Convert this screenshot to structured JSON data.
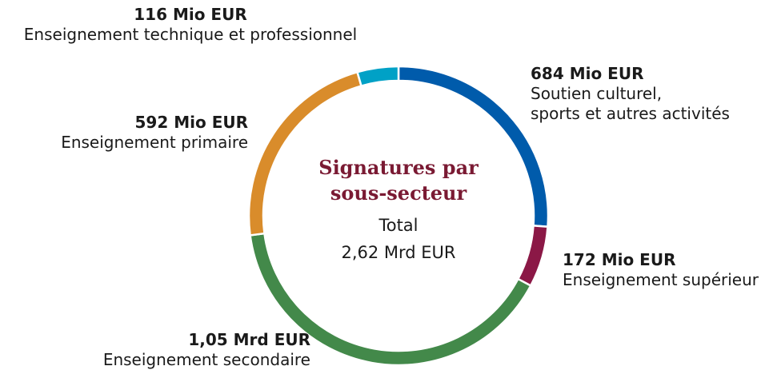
{
  "chart_data": {
    "type": "donut",
    "title": "Signatures par\nsous-secteur",
    "total_label": "Total\n2,62 Mrd EUR",
    "categories": [
      "Soutien culturel,\nsports et autres activités",
      "Enseignement supérieur",
      "Enseignement secondaire",
      "Enseignement primaire",
      "Enseignement technique et professionnel"
    ],
    "values": [
      684,
      172,
      1050,
      592,
      116
    ],
    "value_labels": [
      "684 Mio EUR",
      "172 Mio EUR",
      "1,05 Mrd EUR",
      "592 Mio EUR",
      "116 Mio EUR"
    ],
    "colors": [
      "#005bab",
      "#8b1846",
      "#43894a",
      "#d98c2b",
      "#00a1c6"
    ]
  }
}
